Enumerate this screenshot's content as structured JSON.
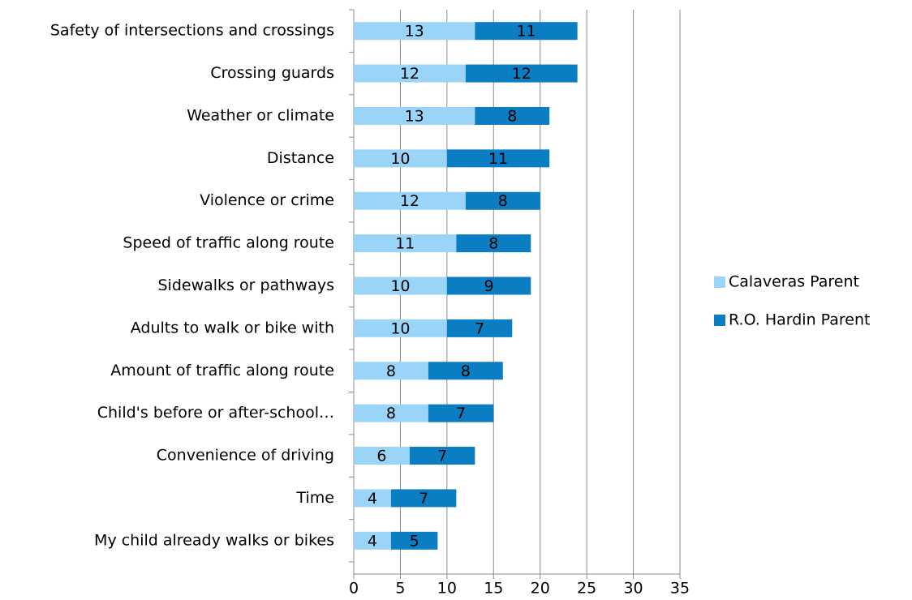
{
  "chart_data": {
    "type": "stacked-bar-horizontal",
    "categories": [
      "Safety of intersections and crossings",
      "Crossing guards",
      "Weather or climate",
      "Distance",
      "Violence or crime",
      "Speed of traffic along route",
      "Sidewalks or pathways",
      "Adults to walk or bike with",
      "Amount of traffic along route",
      "Child's before or after-school…",
      "Convenience of driving",
      "Time",
      "My child already walks or bikes"
    ],
    "series": [
      {
        "name": "Calaveras Parent",
        "color": "#9ad5f7",
        "values": [
          13,
          12,
          13,
          10,
          12,
          11,
          10,
          10,
          8,
          8,
          6,
          4,
          4
        ]
      },
      {
        "name": "R.O. Hardin Parent",
        "color": "#0b7dc3",
        "values": [
          11,
          12,
          8,
          11,
          8,
          8,
          9,
          7,
          8,
          7,
          7,
          7,
          5
        ]
      }
    ],
    "xlim": [
      0,
      35
    ],
    "xticks": [
      0,
      5,
      10,
      15,
      20,
      25,
      30,
      35
    ],
    "grid": true,
    "legend": "right"
  }
}
